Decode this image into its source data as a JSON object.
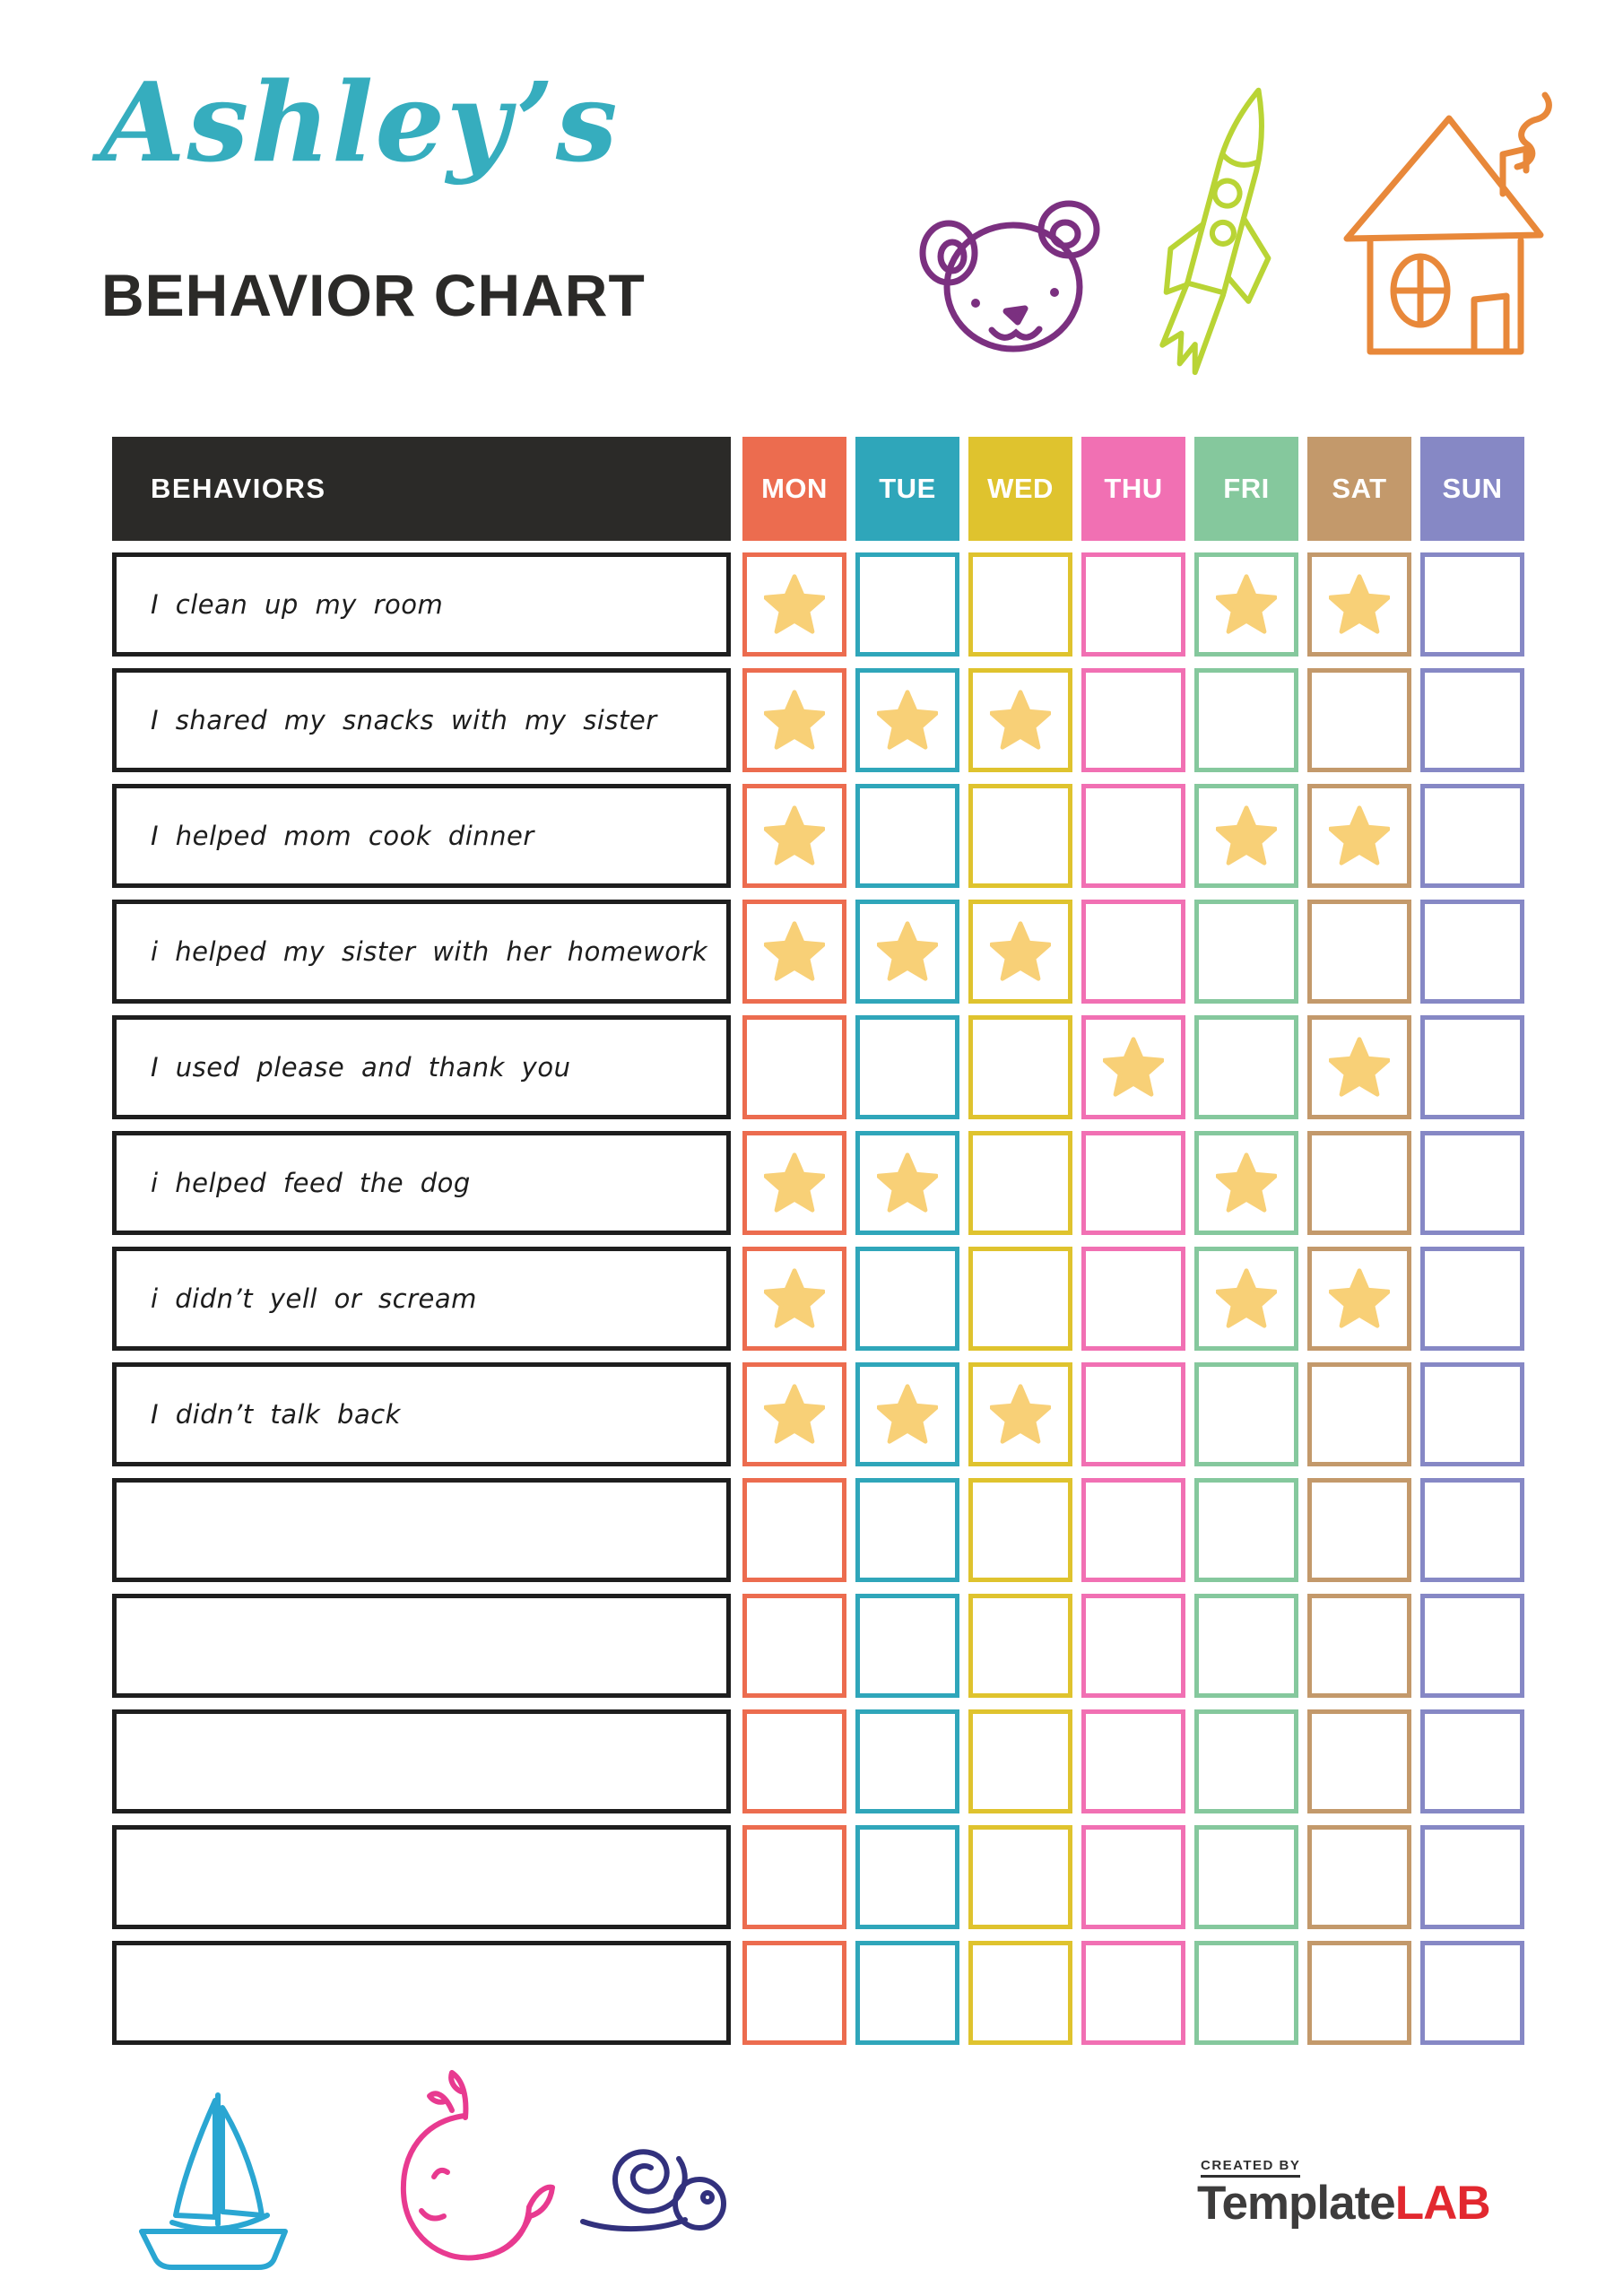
{
  "title": {
    "script": "Ashley’s",
    "main": "BEHAVIOR CHART"
  },
  "table": {
    "behaviors_header": "BEHAVIORS",
    "header_bg": "#2b2a28",
    "star_color": "#f8d077",
    "days": [
      {
        "label": "MON",
        "color": "#ec6c4f"
      },
      {
        "label": "TUE",
        "color": "#2fa6ba"
      },
      {
        "label": "WED",
        "color": "#dfc32e"
      },
      {
        "label": "THU",
        "color": "#f170b3"
      },
      {
        "label": "FRI",
        "color": "#85c89d"
      },
      {
        "label": "SAT",
        "color": "#c3996b"
      },
      {
        "label": "SUN",
        "color": "#8688c5"
      }
    ],
    "rows": [
      {
        "label": "I clean up my room",
        "stars": [
          "MON",
          "FRI",
          "SAT"
        ]
      },
      {
        "label": "I shared my snacks with my sister",
        "stars": [
          "MON",
          "TUE",
          "WED"
        ]
      },
      {
        "label": "I helped mom cook dinner",
        "stars": [
          "MON",
          "FRI",
          "SAT"
        ]
      },
      {
        "label": "i helped my sister with her homework",
        "stars": [
          "MON",
          "TUE",
          "WED"
        ]
      },
      {
        "label": "I used please and thank you",
        "stars": [
          "THU",
          "SAT"
        ]
      },
      {
        "label": "i helped feed the dog",
        "stars": [
          "MON",
          "TUE",
          "FRI"
        ]
      },
      {
        "label": "i didn’t yell or scream",
        "stars": [
          "MON",
          "FRI",
          "SAT"
        ]
      },
      {
        "label": "I didn’t talk back",
        "stars": [
          "MON",
          "TUE",
          "WED"
        ]
      },
      {
        "label": "",
        "stars": []
      },
      {
        "label": "",
        "stars": []
      },
      {
        "label": "",
        "stars": []
      },
      {
        "label": "",
        "stars": []
      },
      {
        "label": "",
        "stars": []
      }
    ]
  },
  "doodles": {
    "top": [
      "bear",
      "rocket",
      "house"
    ],
    "bottom": [
      "sailboat",
      "whale",
      "snail"
    ],
    "colors": {
      "bear": "#7b3080",
      "rocket": "#b9d435",
      "house": "#e8883a",
      "sailboat": "#2aa6d2",
      "whale": "#e83a90",
      "snail": "#32317d"
    }
  },
  "footer": {
    "created_by": "CREATED BY",
    "brand_dark": "Template",
    "brand_red": "LAB"
  }
}
